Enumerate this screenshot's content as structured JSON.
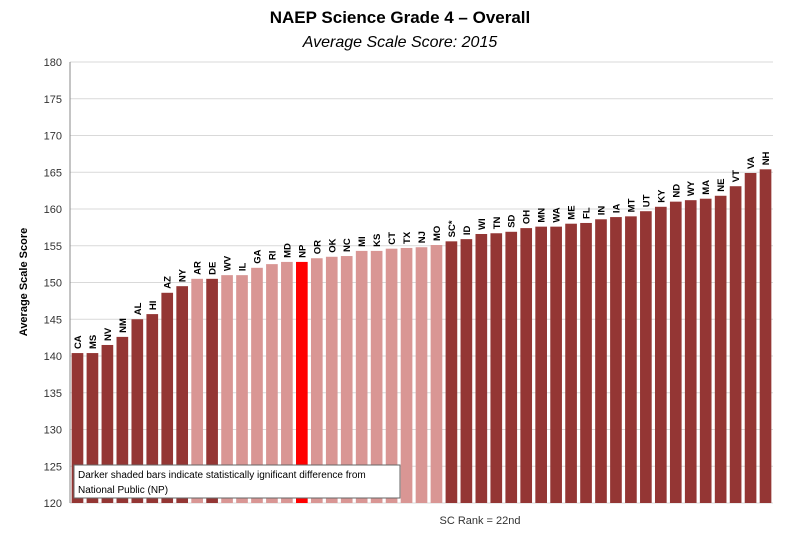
{
  "chart_data": {
    "type": "bar",
    "title": "NAEP Science Grade 4 – Overall",
    "subtitle": "Average Scale Score: 2015",
    "xlabel": "SC Rank = 22nd",
    "ylabel": "Average Scale Score",
    "ylim": [
      120,
      180
    ],
    "yticks": [
      120,
      125,
      130,
      135,
      140,
      145,
      150,
      155,
      160,
      165,
      170,
      175,
      180
    ],
    "grid": true,
    "categories": [
      "CA",
      "MS",
      "NV",
      "NM",
      "AL",
      "HI",
      "AZ",
      "NY",
      "AR",
      "DE",
      "WV",
      "IL",
      "GA",
      "RI",
      "MD",
      "NP",
      "OR",
      "OK",
      "NC",
      "MI",
      "KS",
      "CT",
      "TX",
      "NJ",
      "MO",
      "SC*",
      "ID",
      "WI",
      "TN",
      "SD",
      "OH",
      "MN",
      "WA",
      "ME",
      "FL",
      "IN",
      "IA",
      "MT",
      "UT",
      "KY",
      "ND",
      "WY",
      "MA",
      "NE",
      "VT",
      "VA",
      "NH"
    ],
    "values": [
      140.4,
      140.4,
      141.5,
      142.6,
      145.0,
      145.7,
      148.6,
      149.5,
      150.5,
      150.5,
      151.0,
      151.0,
      152.0,
      152.5,
      152.8,
      152.8,
      153.3,
      153.5,
      153.6,
      154.3,
      154.3,
      154.6,
      154.7,
      154.8,
      155.1,
      155.6,
      155.9,
      156.6,
      156.7,
      156.9,
      157.4,
      157.6,
      157.6,
      158.0,
      158.1,
      158.6,
      158.9,
      159.0,
      159.7,
      160.3,
      161.0,
      161.2,
      161.4,
      161.8,
      163.1,
      164.9,
      165.4
    ],
    "significance": [
      "dark",
      "dark",
      "dark",
      "dark",
      "dark",
      "dark",
      "dark",
      "dark",
      "light",
      "dark",
      "light",
      "light",
      "light",
      "light",
      "light",
      "np",
      "light",
      "light",
      "light",
      "light",
      "light",
      "light",
      "light",
      "light",
      "light",
      "dark",
      "dark",
      "dark",
      "dark",
      "dark",
      "dark",
      "dark",
      "dark",
      "dark",
      "dark",
      "dark",
      "dark",
      "dark",
      "dark",
      "dark",
      "dark",
      "dark",
      "dark",
      "dark",
      "dark",
      "dark",
      "dark"
    ],
    "colors": {
      "dark": "#943634",
      "light": "#d99694",
      "np": "#ff0000"
    },
    "annotation": [
      "Darker shaded bars indicate statistically ignificant difference from",
      "National Public (NP)"
    ]
  }
}
